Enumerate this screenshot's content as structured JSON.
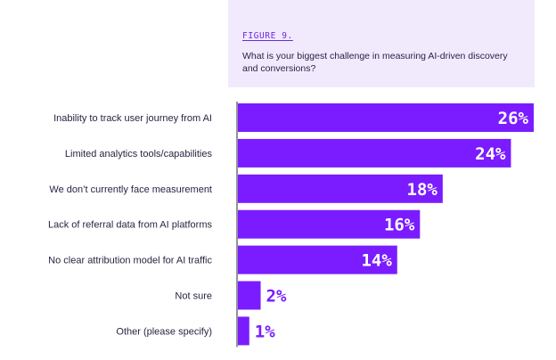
{
  "figure": {
    "label": "FIGURE 9.",
    "question": "What is your biggest challenge in measuring AI-driven discovery and conversions?"
  },
  "colors": {
    "bar": "#7a1cff",
    "header_bg": "#f1eafd",
    "axis": "#2a2342",
    "label_inside": "#ffffff",
    "label_outside": "#7a1cff"
  },
  "chart_data": {
    "type": "bar",
    "orientation": "horizontal",
    "categories": [
      "Inability to track user journey from AI",
      "Limited analytics tools/capabilities",
      "We don’t currently face measurement",
      "Lack of referral data from AI platforms",
      "No clear attribution model for AI traffic",
      "Not sure",
      "Other (please specify)"
    ],
    "values": [
      26,
      24,
      18,
      16,
      14,
      2,
      1
    ],
    "value_labels": [
      "26%",
      "24%",
      "18%",
      "16%",
      "14%",
      "2%",
      "1%"
    ],
    "unit": "%",
    "xlim": [
      0,
      26
    ],
    "grid": false,
    "legend": "none"
  }
}
